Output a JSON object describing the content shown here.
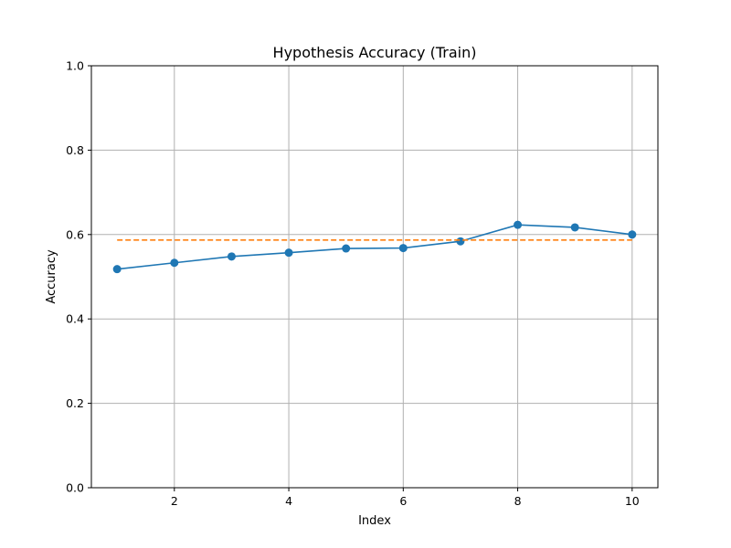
{
  "chart_data": {
    "type": "line",
    "title": "Hypothesis Accuracy (Train)",
    "xlabel": "Index",
    "ylabel": "Accuracy",
    "xlim": [
      0.55,
      10.45
    ],
    "ylim": [
      0.0,
      1.0
    ],
    "xticks": [
      2,
      4,
      6,
      8,
      10
    ],
    "xtick_labels": [
      "2",
      "4",
      "6",
      "8",
      "10"
    ],
    "yticks": [
      0.0,
      0.2,
      0.4,
      0.6,
      0.8,
      1.0
    ],
    "ytick_labels": [
      "0.0",
      "0.2",
      "0.4",
      "0.6",
      "0.8",
      "1.0"
    ],
    "grid": true,
    "series": [
      {
        "x": [
          1,
          2,
          3,
          4,
          5,
          6,
          7,
          8,
          9,
          10
        ],
        "values": [
          0.518,
          0.533,
          0.548,
          0.557,
          0.567,
          0.568,
          0.584,
          0.623,
          0.617,
          0.6
        ],
        "color": "#1f77b4",
        "style": "solid",
        "marker": "circle"
      },
      {
        "x": [
          1,
          10
        ],
        "values": [
          0.587,
          0.587
        ],
        "color": "#ff7f0e",
        "style": "dashed",
        "marker": "none"
      }
    ]
  }
}
